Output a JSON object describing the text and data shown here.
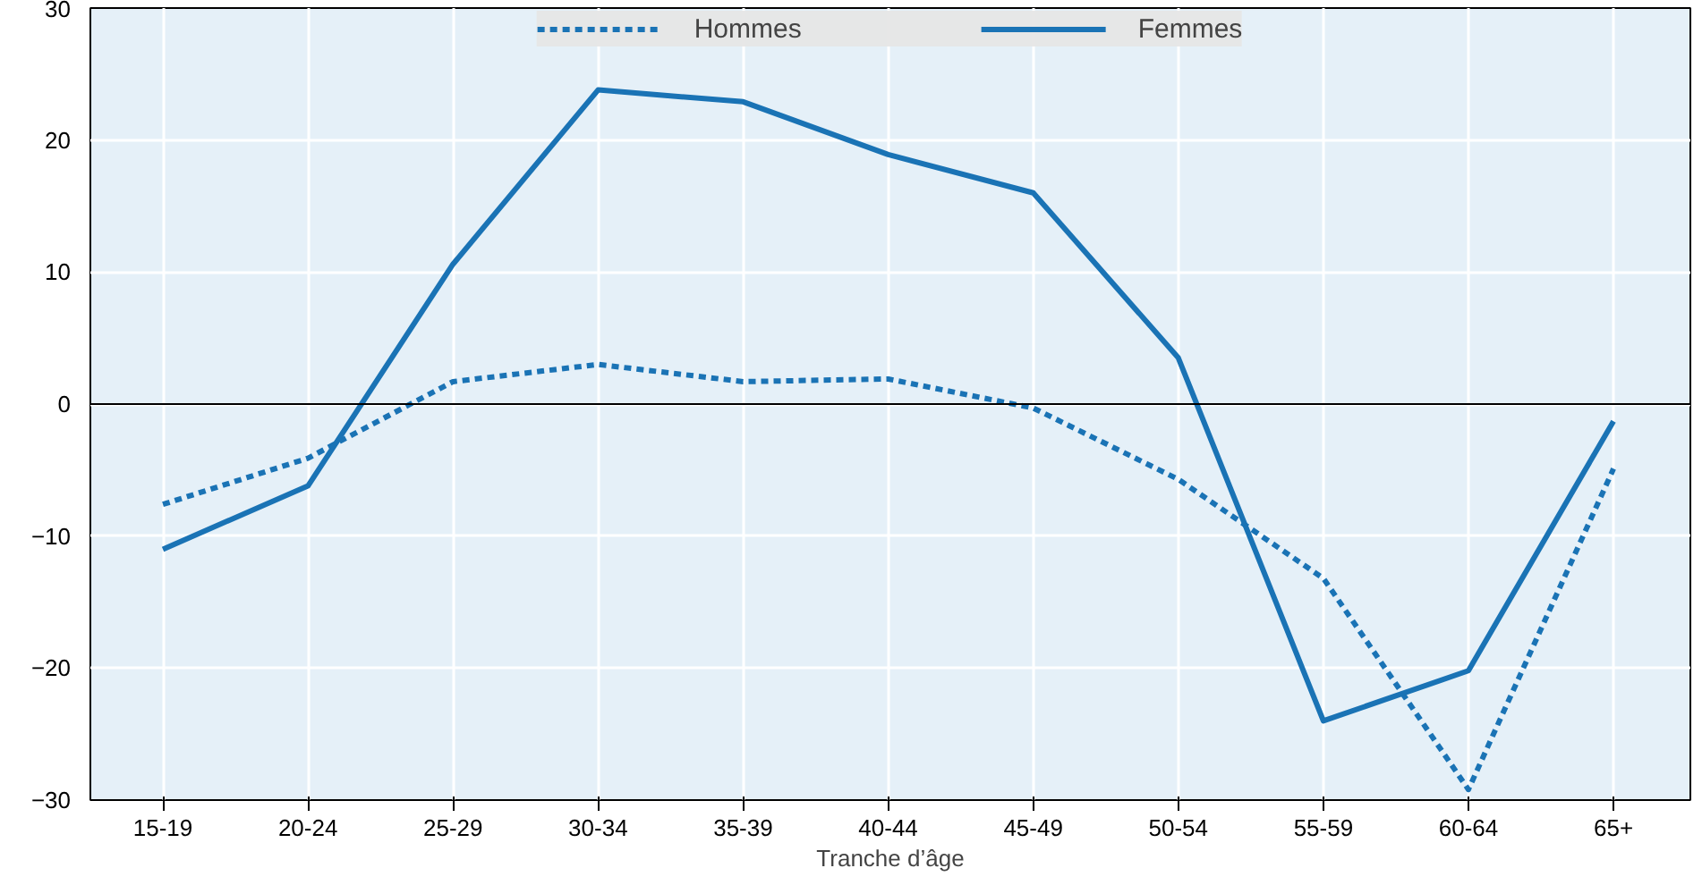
{
  "chart_data": {
    "type": "line",
    "xlabel": "Tranche d’âge",
    "categories": [
      "15-19",
      "20-24",
      "25-29",
      "30-34",
      "35-39",
      "40-44",
      "45-49",
      "50-54",
      "55-59",
      "60-64",
      "65+"
    ],
    "series": [
      {
        "name": "Hommes",
        "color": "#1a73b5",
        "line_style": "dashed",
        "values": [
          -7.6,
          -4.1,
          1.7,
          3.0,
          1.7,
          1.9,
          -0.3,
          -5.7,
          -13.2,
          -29.2,
          -4.9
        ]
      },
      {
        "name": "Femmes",
        "color": "#1a73b5",
        "line_style": "solid",
        "values": [
          -11.0,
          -6.2,
          10.6,
          23.8,
          22.9,
          18.9,
          16.0,
          3.5,
          -24.0,
          -20.2,
          -1.3
        ]
      }
    ],
    "ylim": [
      -30,
      30
    ],
    "yticks": [
      {
        "value": -30,
        "label": "−30"
      },
      {
        "value": -20,
        "label": "−20"
      },
      {
        "value": -10,
        "label": "−10"
      },
      0,
      10,
      20,
      30
    ],
    "ref_lines": [
      {
        "axis": "y",
        "value": 0,
        "color": "#000000"
      }
    ],
    "grid": true,
    "legend": "top",
    "marker": "none"
  }
}
